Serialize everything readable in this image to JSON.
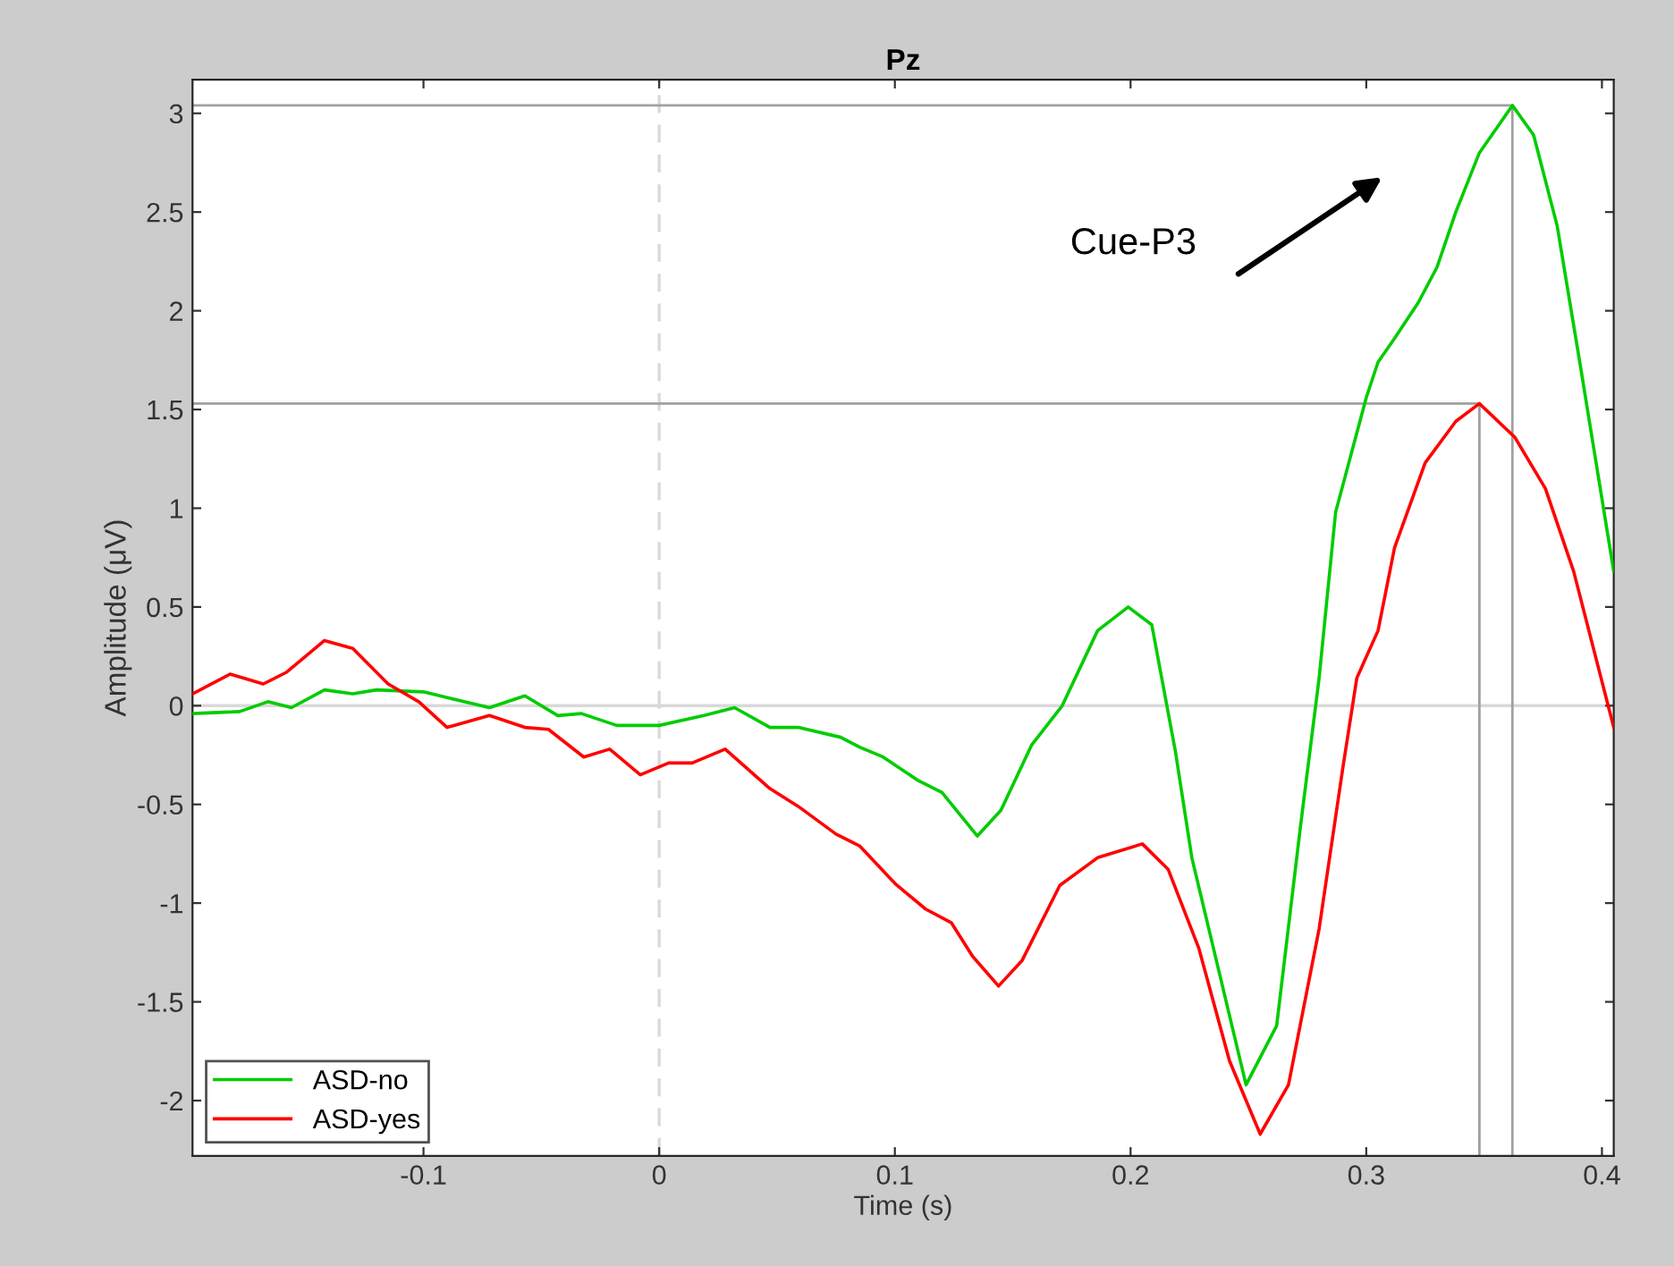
{
  "chart_data": {
    "type": "line",
    "title": "Pz",
    "xlabel": "Time (s)",
    "ylabel": "Amplitude (μV)",
    "xlim": [
      -0.198,
      0.405
    ],
    "ylim": [
      -2.28,
      3.17
    ],
    "xticks": [
      -0.1,
      0,
      0.1,
      0.2,
      0.3,
      0.4
    ],
    "yticks": [
      -2,
      -1.5,
      -1,
      -0.5,
      0,
      0.5,
      1,
      1.5,
      2,
      2.5,
      3
    ],
    "grid": false,
    "legend": "bottom left",
    "ref_lines": [
      {
        "axis": "y",
        "value": 0,
        "color": "#d9d9d9",
        "line_style": "solid"
      },
      {
        "axis": "x",
        "value": 0,
        "color": "#d9d9d9",
        "line_style": "dashed"
      }
    ],
    "annotations": [
      "Cue-P3"
    ],
    "series": [
      {
        "name": "ASD-no",
        "color": "#00cc00",
        "x": [
          -0.198,
          -0.178,
          -0.166,
          -0.156,
          -0.142,
          -0.13,
          -0.12,
          -0.1,
          -0.072,
          -0.057,
          -0.043,
          -0.033,
          -0.018,
          0.0,
          0.019,
          0.032,
          0.047,
          0.059,
          0.077,
          0.085,
          0.095,
          0.11,
          0.12,
          0.135,
          0.145,
          0.158,
          0.171,
          0.186,
          0.199,
          0.209,
          0.219,
          0.226,
          0.237,
          0.249,
          0.262,
          0.272,
          0.28,
          0.287,
          0.3,
          0.305,
          0.312,
          0.322,
          0.33,
          0.338,
          0.348,
          0.362,
          0.371,
          0.381,
          0.391,
          0.405
        ],
        "values": [
          -0.04,
          -0.03,
          0.02,
          -0.01,
          0.08,
          0.06,
          0.08,
          0.07,
          -0.01,
          0.05,
          -0.05,
          -0.04,
          -0.1,
          -0.1,
          -0.05,
          -0.01,
          -0.11,
          -0.11,
          -0.16,
          -0.21,
          -0.26,
          -0.38,
          -0.44,
          -0.66,
          -0.53,
          -0.2,
          0.0,
          0.38,
          0.5,
          0.41,
          -0.23,
          -0.77,
          -1.32,
          -1.92,
          -1.62,
          -0.62,
          0.14,
          0.98,
          1.56,
          1.74,
          1.86,
          2.04,
          2.22,
          2.5,
          2.8,
          3.04,
          2.89,
          2.43,
          1.71,
          0.68
        ]
      },
      {
        "name": "ASD-yes",
        "color": "#ff0000",
        "x": [
          -0.198,
          -0.182,
          -0.168,
          -0.158,
          -0.142,
          -0.13,
          -0.115,
          -0.102,
          -0.09,
          -0.072,
          -0.057,
          -0.047,
          -0.032,
          -0.021,
          -0.008,
          0.004,
          0.014,
          0.028,
          0.047,
          0.059,
          0.075,
          0.085,
          0.1,
          0.113,
          0.124,
          0.133,
          0.144,
          0.154,
          0.17,
          0.186,
          0.205,
          0.216,
          0.229,
          0.242,
          0.255,
          0.267,
          0.28,
          0.29,
          0.296,
          0.305,
          0.312,
          0.325,
          0.338,
          0.348,
          0.363,
          0.376,
          0.388,
          0.405
        ],
        "values": [
          0.06,
          0.16,
          0.11,
          0.17,
          0.33,
          0.29,
          0.11,
          0.02,
          -0.11,
          -0.05,
          -0.11,
          -0.12,
          -0.26,
          -0.22,
          -0.35,
          -0.29,
          -0.29,
          -0.22,
          -0.42,
          -0.51,
          -0.65,
          -0.71,
          -0.9,
          -1.03,
          -1.1,
          -1.27,
          -1.42,
          -1.29,
          -0.91,
          -0.77,
          -0.7,
          -0.83,
          -1.23,
          -1.8,
          -2.17,
          -1.92,
          -1.13,
          -0.32,
          0.14,
          0.38,
          0.8,
          1.23,
          1.44,
          1.53,
          1.36,
          1.1,
          0.68,
          -0.11
        ]
      },
      {
        "color": "#a0a0a0",
        "x": [
          -0.198,
          0.362,
          0.362
        ],
        "values": [
          3.04,
          3.04,
          -2.28
        ]
      },
      {
        "color": "#a0a0a0",
        "x": [
          -0.198,
          0.348,
          0.348
        ],
        "values": [
          1.53,
          1.53,
          -2.28
        ]
      }
    ]
  }
}
